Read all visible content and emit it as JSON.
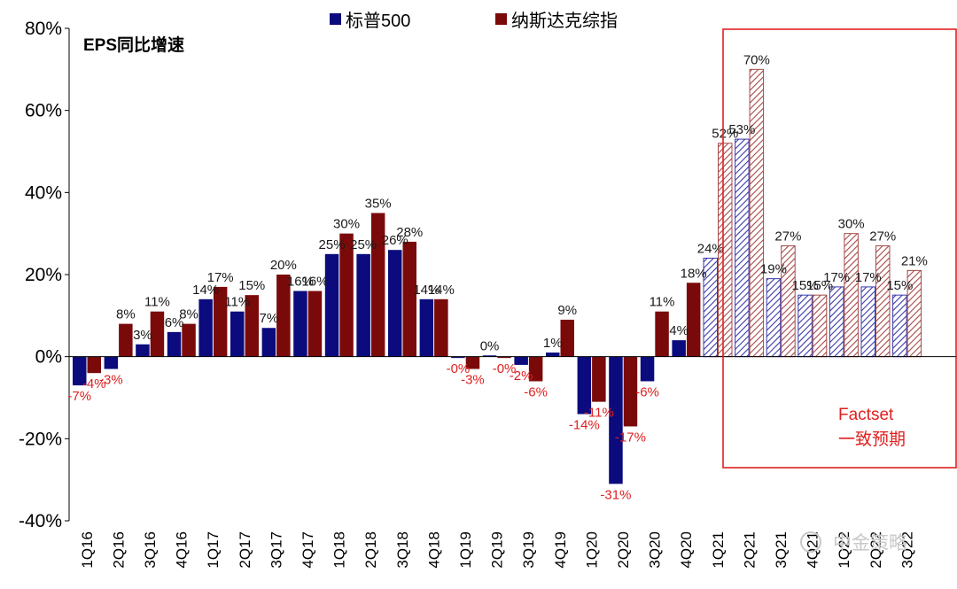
{
  "chart_data": {
    "type": "bar",
    "title": "EPS同比增速",
    "ylim": [
      -40,
      80
    ],
    "yticks": [
      "-40%",
      "-20%",
      "0%",
      "20%",
      "40%",
      "60%",
      "80%"
    ],
    "ytick_values": [
      -40,
      -20,
      0,
      20,
      40,
      60,
      80
    ],
    "categories": [
      "1Q16",
      "2Q16",
      "3Q16",
      "4Q16",
      "1Q17",
      "2Q17",
      "3Q17",
      "4Q17",
      "1Q18",
      "2Q18",
      "3Q18",
      "4Q18",
      "1Q19",
      "2Q19",
      "3Q19",
      "4Q19",
      "1Q20",
      "2Q20",
      "3Q20",
      "4Q20",
      "1Q21",
      "2Q21",
      "3Q21",
      "4Q21",
      "1Q22",
      "2Q22",
      "3Q22"
    ],
    "forecast_start_index": 20,
    "series": [
      {
        "name": "标普500",
        "color": "#0b0b7e",
        "values": [
          -7,
          -3,
          3,
          6,
          14,
          11,
          7,
          16,
          25,
          25,
          26,
          14,
          -0.3,
          0.3,
          -2,
          1,
          -14,
          -31,
          -6,
          4,
          24,
          53,
          19,
          15,
          17,
          17,
          15
        ],
        "labels": [
          "-7%",
          "-3%",
          "3%",
          "6%",
          "14%",
          "11%",
          "7%",
          "16%",
          "25%",
          "25%",
          "26%",
          "14%",
          "-0%",
          "0%",
          "-2%",
          "1%",
          "-14%",
          "-31%",
          "-6%",
          "4%",
          "24%",
          "53%",
          "19%",
          "15%",
          "17%",
          "17%",
          "15%"
        ]
      },
      {
        "name": "纳斯达克综指",
        "color": "#7a0a0a",
        "values": [
          -4,
          8,
          11,
          8,
          17,
          15,
          20,
          16,
          30,
          35,
          28,
          14,
          -3,
          -0.3,
          -6,
          9,
          -11,
          -17,
          11,
          18,
          52,
          70,
          27,
          15,
          30,
          27,
          21
        ],
        "labels": [
          "-4%",
          "8%",
          "11%",
          "8%",
          "17%",
          "15%",
          "20%",
          "16%",
          "30%",
          "35%",
          "28%",
          "14%",
          "-3%",
          "-0%",
          "-6%",
          "9%",
          "-11%",
          "-17%",
          "11%",
          "18%",
          "52%",
          "70%",
          "27%",
          "15%",
          "30%",
          "27%",
          "21%"
        ]
      }
    ],
    "annotation": {
      "line1": "Factset",
      "line2": "一致预期",
      "color": "#e02020"
    }
  },
  "watermark": "中金策略"
}
